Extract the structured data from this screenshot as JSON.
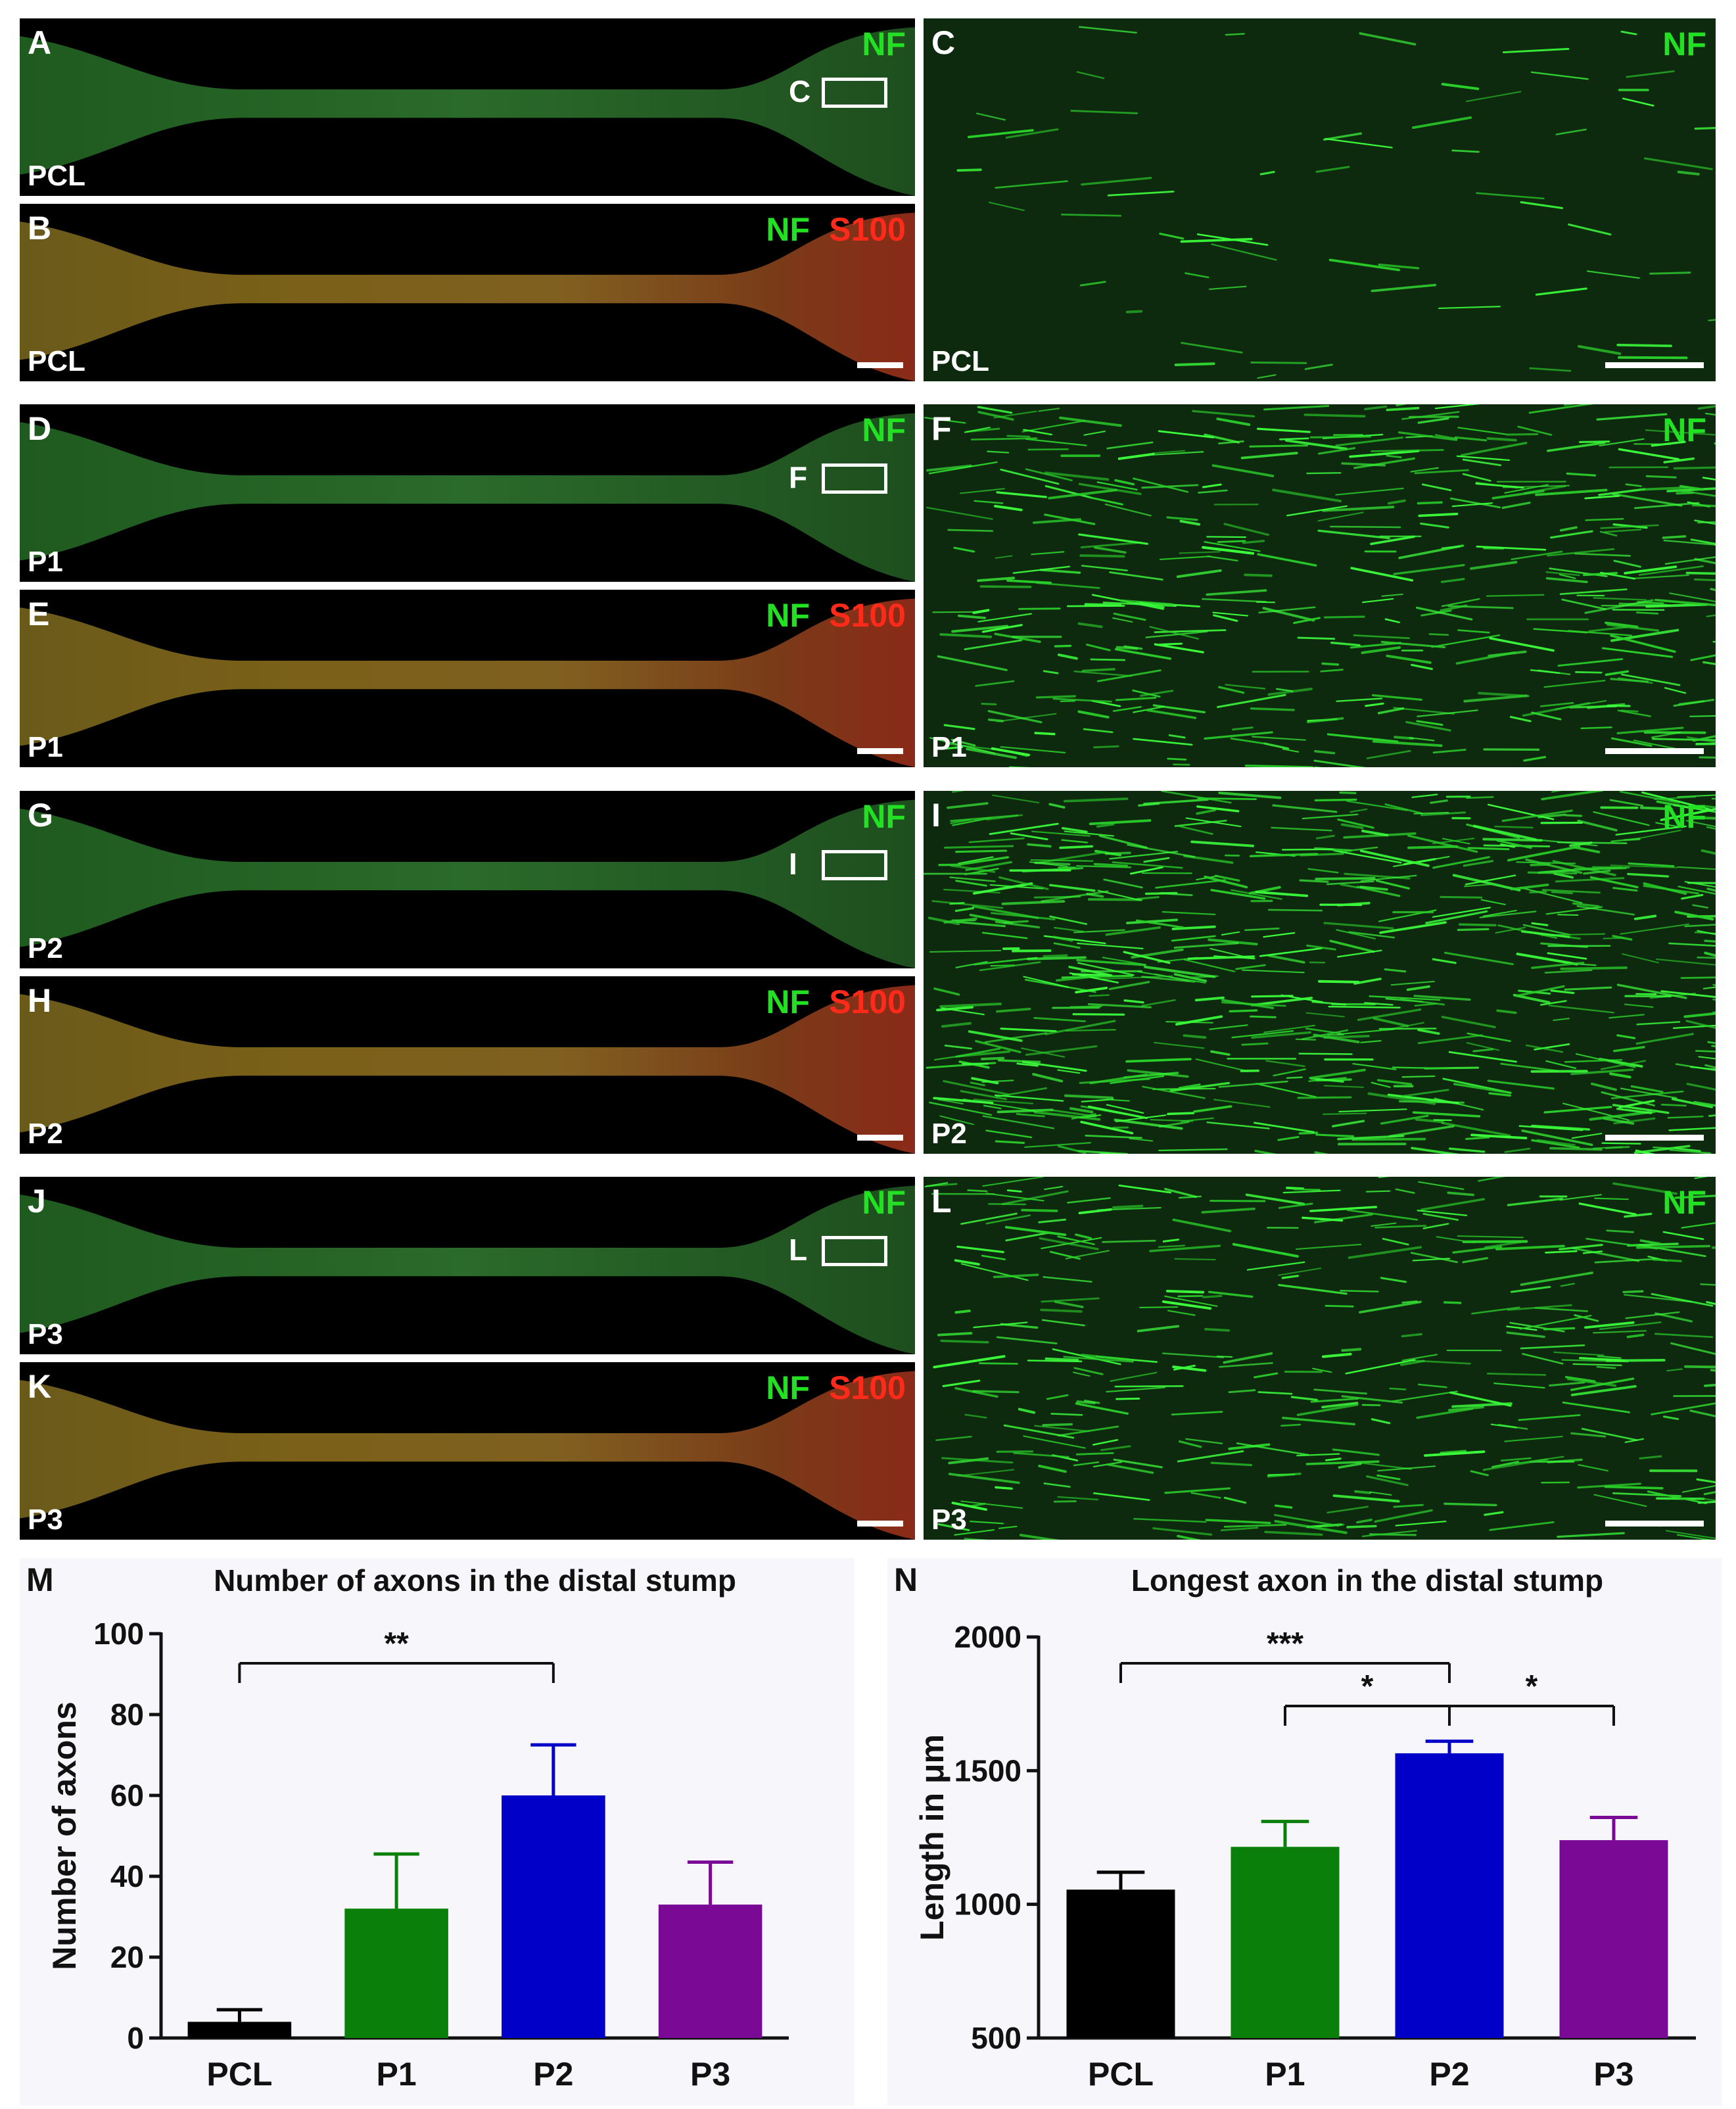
{
  "panels": [
    {
      "id": "A",
      "cond": "PCL",
      "markers": [
        "NF"
      ],
      "box": "C"
    },
    {
      "id": "B",
      "cond": "PCL",
      "markers": [
        "NF",
        "S100"
      ]
    },
    {
      "id": "C",
      "cond": "PCL",
      "markers": [
        "NF"
      ]
    },
    {
      "id": "D",
      "cond": "P1",
      "markers": [
        "NF"
      ],
      "box": "F"
    },
    {
      "id": "E",
      "cond": "P1",
      "markers": [
        "NF",
        "S100"
      ]
    },
    {
      "id": "F",
      "cond": "P1",
      "markers": [
        "NF"
      ]
    },
    {
      "id": "G",
      "cond": "P2",
      "markers": [
        "NF"
      ],
      "box": "I"
    },
    {
      "id": "H",
      "cond": "P2",
      "markers": [
        "NF",
        "S100"
      ]
    },
    {
      "id": "I",
      "cond": "P2",
      "markers": [
        "NF"
      ]
    },
    {
      "id": "J",
      "cond": "P3",
      "markers": [
        "NF"
      ],
      "box": "L"
    },
    {
      "id": "K",
      "cond": "P3",
      "markers": [
        "NF",
        "S100"
      ]
    },
    {
      "id": "L",
      "cond": "P3",
      "markers": [
        "NF"
      ]
    }
  ],
  "colors": {
    "PCL": "#000000",
    "P1": "#0a7f0a",
    "P2": "#0000c8",
    "P3": "#7a0a96",
    "nf": "#22e022",
    "s100": "#ff2a1a"
  },
  "chart_data": [
    {
      "panel": "M",
      "type": "bar",
      "title": "Number of axons in the distal stump",
      "ylabel": "Number of axons",
      "categories": [
        "PCL",
        "P1",
        "P2",
        "P3"
      ],
      "values": [
        4,
        32,
        60,
        33
      ],
      "errors": [
        3,
        13.5,
        12.5,
        10.5
      ],
      "ylim": [
        0,
        100
      ],
      "yticks": [
        0,
        20,
        40,
        60,
        80,
        100
      ],
      "significance": [
        {
          "from": "PCL",
          "to": "P2",
          "label": "**"
        }
      ]
    },
    {
      "panel": "N",
      "type": "bar",
      "title": "Longest axon in the distal stump",
      "ylabel": "Length in μm",
      "categories": [
        "PCL",
        "P1",
        "P2",
        "P3"
      ],
      "values": [
        1055,
        1215,
        1565,
        1240
      ],
      "errors": [
        65,
        95,
        45,
        85
      ],
      "ylim": [
        500,
        2000
      ],
      "yticks": [
        500,
        1000,
        1500,
        2000
      ],
      "significance": [
        {
          "from": "PCL",
          "to": "P2",
          "label": "***"
        },
        {
          "from": "P1",
          "to": "P2",
          "label": "*"
        },
        {
          "from": "P2",
          "to": "P3",
          "label": "*"
        }
      ]
    }
  ]
}
